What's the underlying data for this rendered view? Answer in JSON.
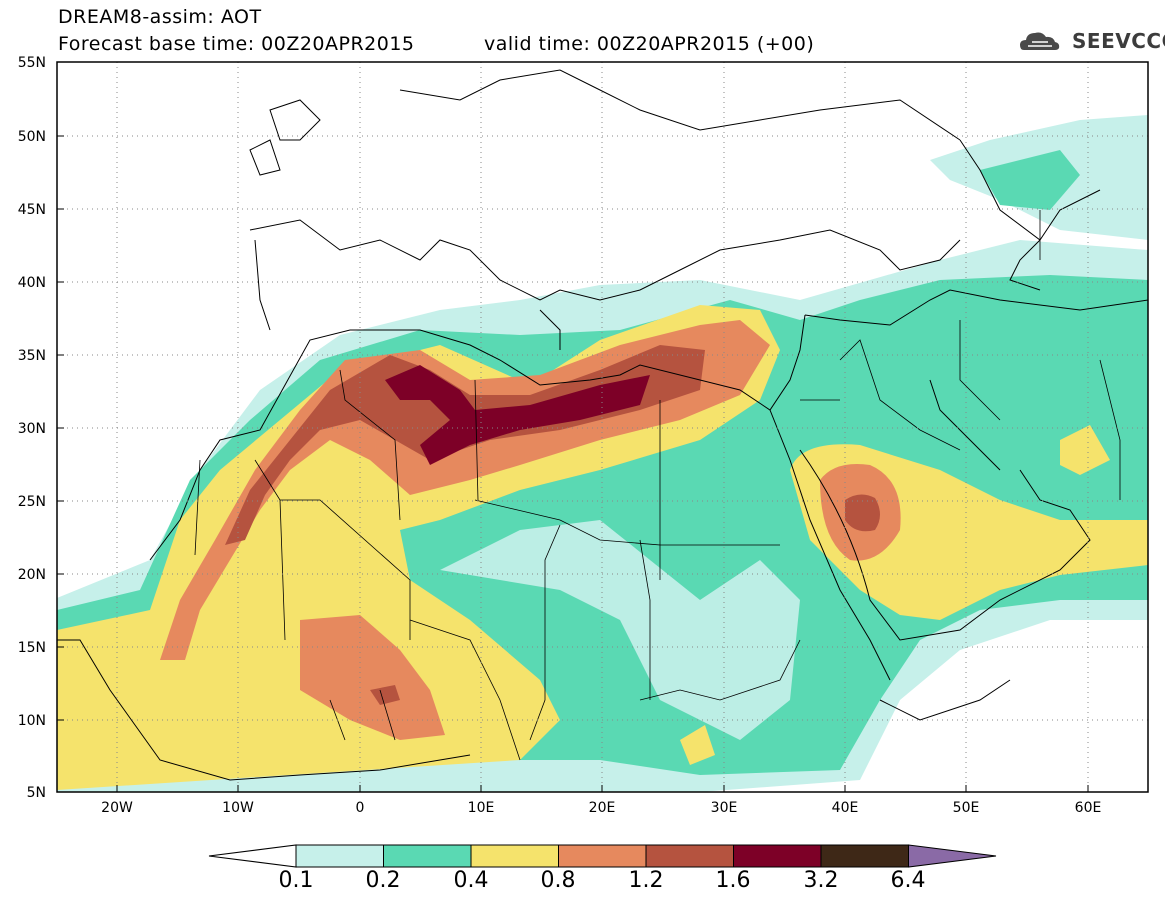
{
  "header": {
    "line1": "DREAM8-assim: AOT",
    "line2": "Forecast base time: 00Z20APR2015",
    "line3": "valid time: 00Z20APR2015 (+00)"
  },
  "logo": {
    "text": "SEEVCCC",
    "icon": "cloud-icon"
  },
  "map": {
    "lon_range": [
      -25,
      65
    ],
    "lat_range": [
      5,
      55
    ],
    "lon_ticks": [
      "20W",
      "10W",
      "0",
      "10E",
      "20E",
      "30E",
      "40E",
      "50E",
      "60E"
    ],
    "lat_ticks": [
      "55N",
      "50N",
      "45N",
      "40N",
      "35N",
      "30N",
      "25N",
      "20N",
      "15N",
      "10N",
      "5N"
    ],
    "grid": "dotted"
  },
  "colorbar": {
    "levels": [
      "0.1",
      "0.2",
      "0.4",
      "0.8",
      "1.2",
      "1.6",
      "3.2",
      "6.4"
    ],
    "colors": [
      "#ffffff",
      "#c6f0ea",
      "#5ad9b3",
      "#f5e36c",
      "#e6895e",
      "#b5533f",
      "#7d0027",
      "#3e2817",
      "#8a6aa6"
    ]
  }
}
